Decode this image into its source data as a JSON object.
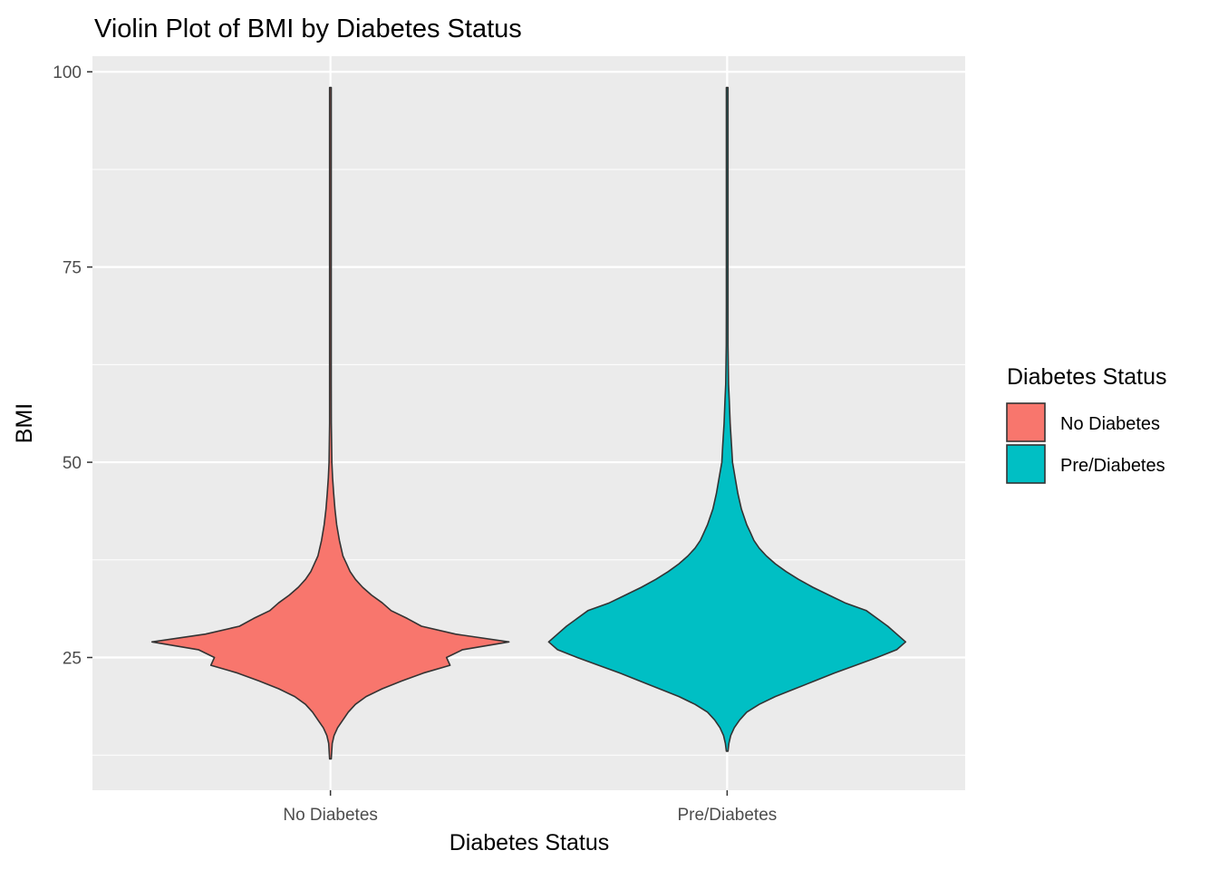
{
  "chart_data": {
    "type": "violin",
    "title": "Violin Plot of BMI by Diabetes Status",
    "xlabel": "Diabetes Status",
    "ylabel": "BMI",
    "categories": [
      "No Diabetes",
      "Pre/Diabetes"
    ],
    "ylim": [
      8,
      102
    ],
    "y_ticks": [
      25,
      50,
      75,
      100
    ],
    "y_minor_ticks": [
      12.5,
      37.5,
      62.5,
      87.5
    ],
    "grid": true,
    "legend": {
      "title": "Diabetes Status",
      "position": "right",
      "entries": [
        {
          "label": "No Diabetes",
          "color": "#F8766D"
        },
        {
          "label": "Pre/Diabetes",
          "color": "#00BFC4"
        }
      ]
    },
    "series": [
      {
        "category": "No Diabetes",
        "color": "#F8766D",
        "y_min": 12,
        "y_max": 98,
        "density_profile": [
          [
            12,
            0.0
          ],
          [
            14,
            0.01
          ],
          [
            15,
            0.02
          ],
          [
            16,
            0.04
          ],
          [
            17,
            0.07
          ],
          [
            18,
            0.1
          ],
          [
            19,
            0.14
          ],
          [
            20,
            0.2
          ],
          [
            21,
            0.29
          ],
          [
            22,
            0.4
          ],
          [
            23,
            0.52
          ],
          [
            24,
            0.67
          ],
          [
            25,
            0.65
          ],
          [
            26,
            0.74
          ],
          [
            27,
            1.0
          ],
          [
            28,
            0.7
          ],
          [
            29,
            0.51
          ],
          [
            30,
            0.43
          ],
          [
            31,
            0.34
          ],
          [
            32,
            0.29
          ],
          [
            33,
            0.23
          ],
          [
            34,
            0.18
          ],
          [
            35,
            0.14
          ],
          [
            36,
            0.11
          ],
          [
            37,
            0.09
          ],
          [
            38,
            0.07
          ],
          [
            40,
            0.05
          ],
          [
            42,
            0.035
          ],
          [
            44,
            0.025
          ],
          [
            46,
            0.018
          ],
          [
            48,
            0.012
          ],
          [
            50,
            0.008
          ],
          [
            55,
            0.005
          ],
          [
            60,
            0.004
          ],
          [
            70,
            0.003
          ],
          [
            80,
            0.002
          ],
          [
            90,
            0.002
          ],
          [
            98,
            0.0
          ]
        ]
      },
      {
        "category": "Pre/Diabetes",
        "color": "#00BFC4",
        "y_min": 13,
        "y_max": 98,
        "density_profile": [
          [
            13,
            0.0
          ],
          [
            14,
            0.01
          ],
          [
            15,
            0.02
          ],
          [
            16,
            0.04
          ],
          [
            17,
            0.07
          ],
          [
            18,
            0.11
          ],
          [
            19,
            0.18
          ],
          [
            20,
            0.27
          ],
          [
            21,
            0.38
          ],
          [
            22,
            0.49
          ],
          [
            23,
            0.6
          ],
          [
            24,
            0.72
          ],
          [
            25,
            0.84
          ],
          [
            26,
            0.95
          ],
          [
            27,
            1.0
          ],
          [
            28,
            0.95
          ],
          [
            29,
            0.9
          ],
          [
            30,
            0.84
          ],
          [
            31,
            0.78
          ],
          [
            32,
            0.66
          ],
          [
            33,
            0.57
          ],
          [
            34,
            0.48
          ],
          [
            35,
            0.4
          ],
          [
            36,
            0.33
          ],
          [
            37,
            0.27
          ],
          [
            38,
            0.22
          ],
          [
            39,
            0.18
          ],
          [
            40,
            0.15
          ],
          [
            41,
            0.13
          ],
          [
            42,
            0.11
          ],
          [
            44,
            0.08
          ],
          [
            46,
            0.06
          ],
          [
            48,
            0.045
          ],
          [
            50,
            0.03
          ],
          [
            52,
            0.025
          ],
          [
            55,
            0.017
          ],
          [
            58,
            0.012
          ],
          [
            60,
            0.008
          ],
          [
            65,
            0.005
          ],
          [
            70,
            0.004
          ],
          [
            80,
            0.003
          ],
          [
            90,
            0.002
          ],
          [
            98,
            0.0
          ]
        ]
      }
    ]
  }
}
